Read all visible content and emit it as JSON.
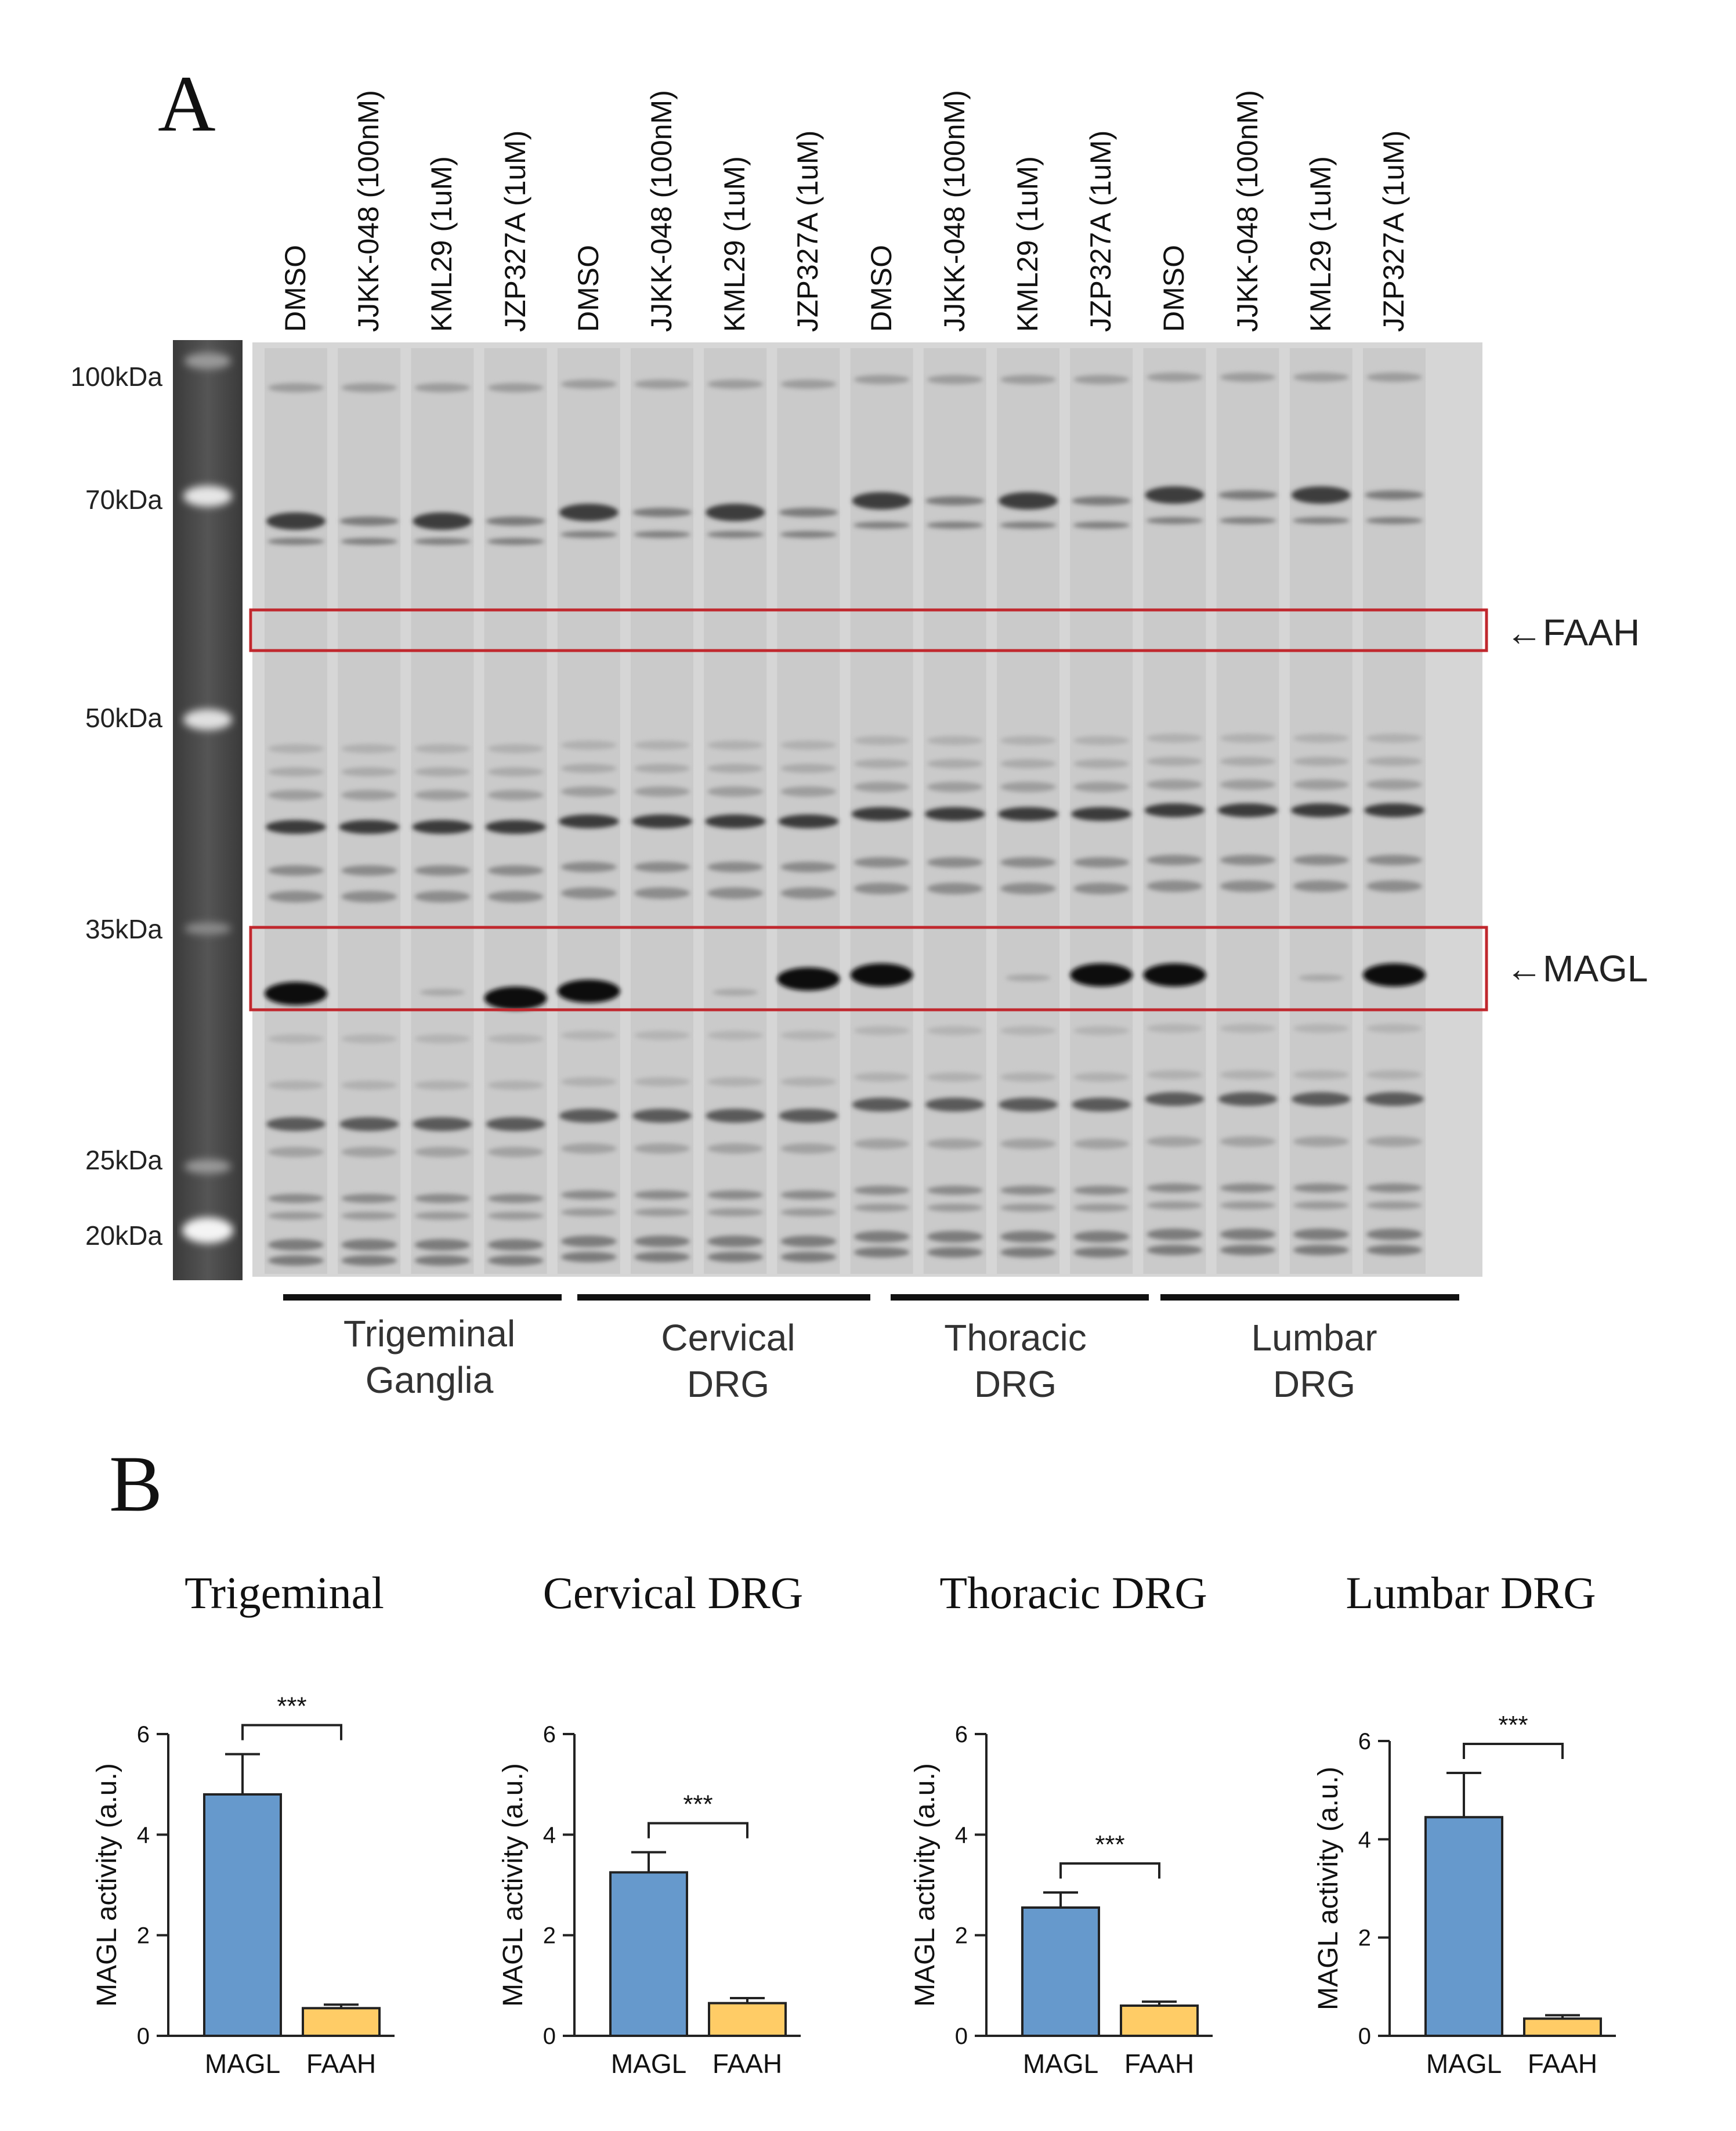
{
  "figure": {
    "panel_a": "A",
    "panel_b": "B",
    "lanes": [
      "DMSO",
      "JJKK-048 (100nM)",
      "KML29 (1uM)",
      "JZP327A (1uM)",
      "DMSO",
      "JJKK-048 (100nM)",
      "KML29 (1uM)",
      "JZP327A (1uM)",
      "DMSO",
      "JJKK-048 (100nM)",
      "KML29 (1uM)",
      "JZP327A (1uM)",
      "DMSO",
      "JJKK-048 (100nM)",
      "KML29 (1uM)",
      "JZP327A (1uM)"
    ],
    "ladder": [
      "100kDa",
      "70kDa",
      "50kDa",
      "35kDa",
      "25kDa",
      "20kDa"
    ],
    "groups": [
      {
        "line1": "Trigeminal",
        "line2": "Ganglia"
      },
      {
        "line1": "Cervical",
        "line2": "DRG"
      },
      {
        "line1": "Thoracic",
        "line2": "DRG"
      },
      {
        "line1": "Lumbar",
        "line2": "DRG"
      }
    ],
    "faah_label": "←FAAH",
    "magl_label": "←MAGL",
    "colors": {
      "magl_bar": "#6699cc",
      "faah_bar": "#ffcc66",
      "box": "#c0282e"
    }
  },
  "chart_data": [
    {
      "type": "bar",
      "title": "Trigeminal",
      "categories": [
        "MAGL",
        "FAAH"
      ],
      "values": [
        4.8,
        0.55
      ],
      "errors": [
        0.8,
        0.07
      ],
      "ylabel": "MAGL activity (a.u.)",
      "xlabel": "",
      "ylim": [
        0,
        6
      ],
      "yticks": [
        0,
        2,
        4,
        6
      ],
      "significance": "***"
    },
    {
      "type": "bar",
      "title": "Cervical DRG",
      "categories": [
        "MAGL",
        "FAAH"
      ],
      "values": [
        3.25,
        0.65
      ],
      "errors": [
        0.4,
        0.1
      ],
      "ylabel": "MAGL activity (a.u.)",
      "xlabel": "",
      "ylim": [
        0,
        6
      ],
      "yticks": [
        0,
        2,
        4,
        6
      ],
      "significance": "***"
    },
    {
      "type": "bar",
      "title": "Thoracic DRG",
      "categories": [
        "MAGL",
        "FAAH"
      ],
      "values": [
        2.55,
        0.6
      ],
      "errors": [
        0.3,
        0.08
      ],
      "ylabel": "MAGL activity (a.u.)",
      "xlabel": "",
      "ylim": [
        0,
        6
      ],
      "yticks": [
        0,
        2,
        4,
        6
      ],
      "significance": "***"
    },
    {
      "type": "bar",
      "title": "Lumbar DRG",
      "categories": [
        "MAGL",
        "FAAH"
      ],
      "values": [
        4.45,
        0.35
      ],
      "errors": [
        0.9,
        0.07
      ],
      "ylabel": "MAGL activity (a.u.)",
      "xlabel": "",
      "ylim": [
        0,
        6
      ],
      "yticks": [
        0,
        2,
        4,
        6
      ],
      "significance": "***"
    }
  ]
}
